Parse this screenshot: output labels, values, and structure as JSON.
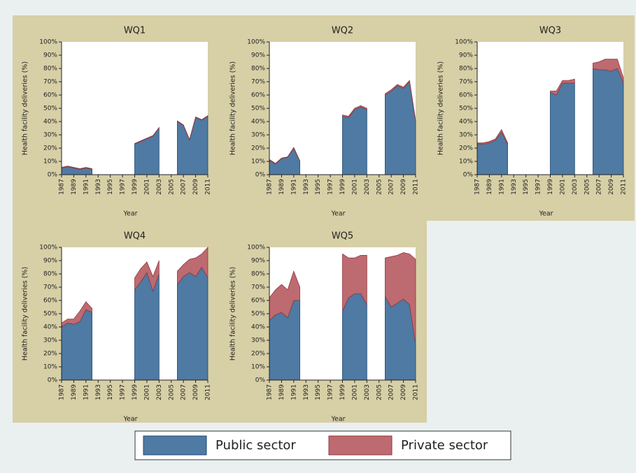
{
  "legend": [
    {
      "name": "Public sector",
      "color": "#4e7aa3"
    },
    {
      "name": "Private sector",
      "color": "#bd6a70"
    }
  ],
  "chart_data": [
    {
      "type": "area",
      "stacked": true,
      "title": "WQ1",
      "x_label": "Year",
      "y_label": "Health facility deliveries (%)",
      "x": [
        1987,
        1988,
        1989,
        1990,
        1991,
        1992,
        1993,
        1994,
        1995,
        1996,
        1997,
        1998,
        1999,
        2000,
        2001,
        2002,
        2003,
        2004,
        2005,
        2006,
        2007,
        2008,
        2009,
        2010,
        2011
      ],
      "series": [
        {
          "values": [
            5,
            6,
            5,
            4,
            5,
            4,
            null,
            null,
            null,
            null,
            null,
            null,
            23,
            25,
            27,
            29,
            35,
            null,
            null,
            40,
            37,
            26,
            43,
            41,
            44
          ]
        },
        {
          "values": [
            0.5,
            0.5,
            0.5,
            0.5,
            0.5,
            0.5,
            null,
            null,
            null,
            null,
            null,
            null,
            0.5,
            0.5,
            0.5,
            0.5,
            0.5,
            null,
            null,
            0.5,
            0.5,
            0.5,
            0.5,
            0.5,
            0.5
          ]
        }
      ],
      "xlim": [
        1987,
        2011
      ],
      "xticks": [
        1987,
        1989,
        1991,
        1993,
        1995,
        1997,
        1999,
        2001,
        2003,
        2005,
        2007,
        2009,
        2011
      ],
      "ylim": [
        0,
        100
      ],
      "yticks": [
        {
          "value": 0,
          "label": "0%"
        },
        {
          "value": 10,
          "label": "10%"
        },
        {
          "value": 20,
          "label": "20%"
        },
        {
          "value": 30,
          "label": "30%"
        },
        {
          "value": 40,
          "label": "40%"
        },
        {
          "value": 50,
          "label": "50%"
        },
        {
          "value": 60,
          "label": "60%"
        },
        {
          "value": 70,
          "label": "70%"
        },
        {
          "value": 80,
          "label": "80%"
        },
        {
          "value": 90,
          "label": "90%"
        },
        {
          "value": 100,
          "label": "100%"
        }
      ]
    },
    {
      "type": "area",
      "stacked": true,
      "title": "WQ2",
      "x_label": "Year",
      "y_label": "Health facility deliveries (%)",
      "x": [
        1987,
        1988,
        1989,
        1990,
        1991,
        1992,
        1993,
        1994,
        1995,
        1996,
        1997,
        1998,
        1999,
        2000,
        2001,
        2002,
        2003,
        2004,
        2005,
        2006,
        2007,
        2008,
        2009,
        2010,
        2011
      ],
      "series": [
        {
          "values": [
            11,
            8,
            12,
            13,
            20,
            10,
            null,
            null,
            null,
            null,
            null,
            null,
            44,
            43,
            49,
            51,
            49,
            null,
            null,
            60,
            63,
            67,
            65,
            70,
            40
          ]
        },
        {
          "values": [
            0.5,
            0.5,
            0.5,
            0.5,
            0.5,
            0.5,
            null,
            null,
            null,
            null,
            null,
            null,
            1,
            1,
            1,
            1,
            1,
            null,
            null,
            1,
            1,
            1,
            1,
            1,
            1
          ]
        }
      ],
      "xlim": [
        1987,
        2011
      ],
      "xticks": [
        1987,
        1989,
        1991,
        1993,
        1995,
        1997,
        1999,
        2001,
        2003,
        2005,
        2007,
        2009,
        2011
      ],
      "ylim": [
        0,
        100
      ],
      "yticks": [
        {
          "value": 0,
          "label": "0%"
        },
        {
          "value": 10,
          "label": "10%"
        },
        {
          "value": 20,
          "label": "20%"
        },
        {
          "value": 30,
          "label": "30%"
        },
        {
          "value": 40,
          "label": "40%"
        },
        {
          "value": 50,
          "label": "50%"
        },
        {
          "value": 60,
          "label": "60%"
        },
        {
          "value": 70,
          "label": "70%"
        },
        {
          "value": 80,
          "label": "80%"
        },
        {
          "value": 90,
          "label": "90%"
        },
        {
          "value": 100,
          "label": "100%"
        }
      ]
    },
    {
      "type": "area",
      "stacked": true,
      "title": "WQ3",
      "x_label": "Year",
      "y_label": "Health facility deliveries (%)",
      "x": [
        1987,
        1988,
        1989,
        1990,
        1991,
        1992,
        1993,
        1994,
        1995,
        1996,
        1997,
        1998,
        1999,
        2000,
        2001,
        2002,
        2003,
        2004,
        2005,
        2006,
        2007,
        2008,
        2009,
        2010,
        2011
      ],
      "series": [
        {
          "values": [
            23,
            23,
            24,
            26,
            32,
            23,
            null,
            null,
            null,
            null,
            null,
            null,
            62,
            60,
            69,
            69,
            69,
            null,
            null,
            80,
            79,
            79,
            78,
            80,
            69
          ]
        },
        {
          "values": [
            1,
            1,
            1,
            1,
            2,
            1,
            null,
            null,
            null,
            null,
            null,
            null,
            1,
            3,
            2,
            2,
            3,
            null,
            null,
            4,
            6,
            8,
            9,
            7,
            4
          ]
        }
      ],
      "xlim": [
        1987,
        2011
      ],
      "xticks": [
        1987,
        1989,
        1991,
        1993,
        1995,
        1997,
        1999,
        2001,
        2003,
        2005,
        2007,
        2009,
        2011
      ],
      "ylim": [
        0,
        100
      ],
      "yticks": [
        {
          "value": 0,
          "label": "0%"
        },
        {
          "value": 10,
          "label": "10%"
        },
        {
          "value": 20,
          "label": "20%"
        },
        {
          "value": 30,
          "label": "30%"
        },
        {
          "value": 40,
          "label": "40%"
        },
        {
          "value": 50,
          "label": "50%"
        },
        {
          "value": 60,
          "label": "60%"
        },
        {
          "value": 70,
          "label": "70%"
        },
        {
          "value": 80,
          "label": "80%"
        },
        {
          "value": 90,
          "label": "90%"
        },
        {
          "value": 100,
          "label": "100%"
        }
      ]
    },
    {
      "type": "area",
      "stacked": true,
      "title": "WQ4",
      "x_label": "Year",
      "y_label": "Health facility deliveries (%)",
      "x": [
        1987,
        1988,
        1989,
        1990,
        1991,
        1992,
        1993,
        1994,
        1995,
        1996,
        1997,
        1998,
        1999,
        2000,
        2001,
        2002,
        2003,
        2004,
        2005,
        2006,
        2007,
        2008,
        2009,
        2010,
        2011
      ],
      "series": [
        {
          "values": [
            40,
            43,
            42,
            44,
            53,
            51,
            null,
            null,
            null,
            null,
            null,
            null,
            68,
            74,
            81,
            67,
            80,
            null,
            null,
            72,
            78,
            81,
            78,
            85,
            77
          ]
        },
        {
          "values": [
            3,
            3,
            4,
            8,
            6,
            3,
            null,
            null,
            null,
            null,
            null,
            null,
            9,
            10,
            8,
            11,
            10,
            null,
            null,
            10,
            9,
            10,
            14,
            10,
            23
          ]
        }
      ],
      "xlim": [
        1987,
        2011
      ],
      "xticks": [
        1987,
        1989,
        1991,
        1993,
        1995,
        1997,
        1999,
        2001,
        2003,
        2005,
        2007,
        2009,
        2011
      ],
      "ylim": [
        0,
        100
      ],
      "yticks": [
        {
          "value": 0,
          "label": "0%"
        },
        {
          "value": 10,
          "label": "10%"
        },
        {
          "value": 20,
          "label": "20%"
        },
        {
          "value": 30,
          "label": "30%"
        },
        {
          "value": 40,
          "label": "40%"
        },
        {
          "value": 50,
          "label": "50%"
        },
        {
          "value": 60,
          "label": "60%"
        },
        {
          "value": 70,
          "label": "70%"
        },
        {
          "value": 80,
          "label": "80%"
        },
        {
          "value": 90,
          "label": "90%"
        },
        {
          "value": 100,
          "label": "100%"
        }
      ]
    },
    {
      "type": "area",
      "stacked": true,
      "title": "WQ5",
      "x_label": "Year",
      "y_label": "Health facility deliveries (%)",
      "x": [
        1987,
        1988,
        1989,
        1990,
        1991,
        1992,
        1993,
        1994,
        1995,
        1996,
        1997,
        1998,
        1999,
        2000,
        2001,
        2002,
        2003,
        2004,
        2005,
        2006,
        2007,
        2008,
        2009,
        2010,
        2011
      ],
      "series": [
        {
          "values": [
            45,
            49,
            51,
            47,
            60,
            60,
            null,
            null,
            null,
            null,
            null,
            null,
            52,
            62,
            65,
            65,
            57,
            null,
            null,
            63,
            55,
            58,
            61,
            57,
            27
          ]
        },
        {
          "values": [
            17,
            19,
            21,
            21,
            22,
            10,
            null,
            null,
            null,
            null,
            null,
            null,
            43,
            30,
            27,
            29,
            37,
            null,
            null,
            29,
            38,
            36,
            35,
            38,
            64
          ]
        }
      ],
      "xlim": [
        1987,
        2011
      ],
      "xticks": [
        1987,
        1989,
        1991,
        1993,
        1995,
        1997,
        1999,
        2001,
        2003,
        2005,
        2007,
        2009,
        2011
      ],
      "ylim": [
        0,
        100
      ],
      "yticks": [
        {
          "value": 0,
          "label": "0%"
        },
        {
          "value": 10,
          "label": "10%"
        },
        {
          "value": 20,
          "label": "20%"
        },
        {
          "value": 30,
          "label": "30%"
        },
        {
          "value": 40,
          "label": "40%"
        },
        {
          "value": 50,
          "label": "50%"
        },
        {
          "value": 60,
          "label": "60%"
        },
        {
          "value": 70,
          "label": "70%"
        },
        {
          "value": 80,
          "label": "80%"
        },
        {
          "value": 90,
          "label": "90%"
        },
        {
          "value": 100,
          "label": "100%"
        }
      ]
    }
  ]
}
